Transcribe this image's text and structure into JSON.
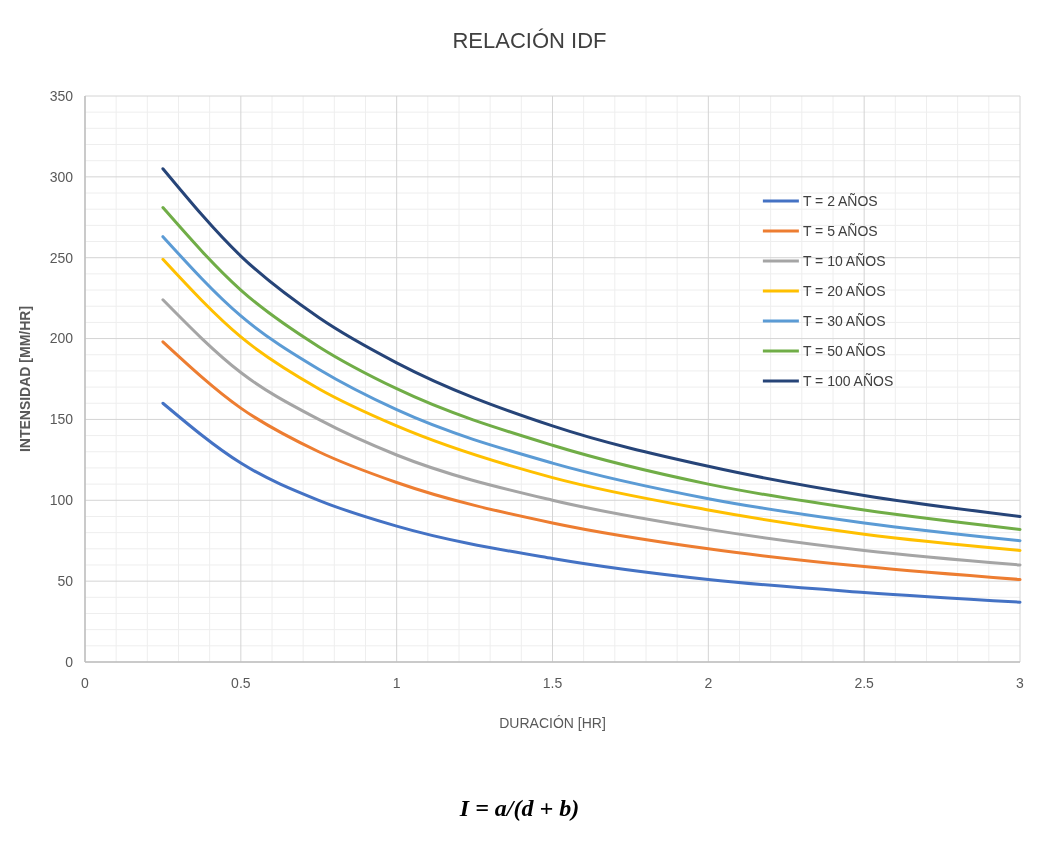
{
  "chart_data": {
    "type": "line",
    "title": "RELACIÓN IDF",
    "xlabel": "DURACIÓN [HR]",
    "ylabel": "INTENSIDAD [MM/HR]",
    "x": [
      0.25,
      0.5,
      0.75,
      1,
      1.5,
      2,
      2.5,
      3
    ],
    "series": [
      {
        "name": "T = 2 AÑOS",
        "color": "#4472c4",
        "values": [
          160,
          123,
          100,
          84,
          64,
          51,
          43,
          37
        ]
      },
      {
        "name": "T = 5 AÑOS",
        "color": "#ed7d31",
        "values": [
          198,
          157,
          130,
          111,
          86,
          70,
          59,
          51
        ]
      },
      {
        "name": "T = 10 AÑOS",
        "color": "#a5a5a5",
        "values": [
          224,
          179,
          150,
          128,
          100,
          82,
          69,
          60
        ]
      },
      {
        "name": "T = 20 AÑOS",
        "color": "#ffc000",
        "values": [
          249,
          201,
          169,
          146,
          114,
          94,
          79,
          69
        ]
      },
      {
        "name": "T = 30 AÑOS",
        "color": "#5b9bd5",
        "values": [
          263,
          214,
          181,
          156,
          123,
          101,
          86,
          75
        ]
      },
      {
        "name": "T = 50 AÑOS",
        "color": "#70ad47",
        "values": [
          281,
          230,
          195,
          169,
          134,
          110,
          94,
          82
        ]
      },
      {
        "name": "T = 100 AÑOS",
        "color": "#264478",
        "values": [
          305,
          251,
          213,
          185,
          146,
          121,
          103,
          90
        ]
      }
    ],
    "xlim": [
      0,
      3
    ],
    "xticks": [
      0,
      0.5,
      1,
      1.5,
      2,
      2.5,
      3
    ],
    "ylim": [
      0,
      350
    ],
    "yticks": [
      0,
      50,
      100,
      150,
      200,
      250,
      300,
      350
    ],
    "grid": true,
    "legend": "top right",
    "marker": "none",
    "line_style": "solid",
    "annotations": [
      "I = a/(d + b)"
    ]
  }
}
